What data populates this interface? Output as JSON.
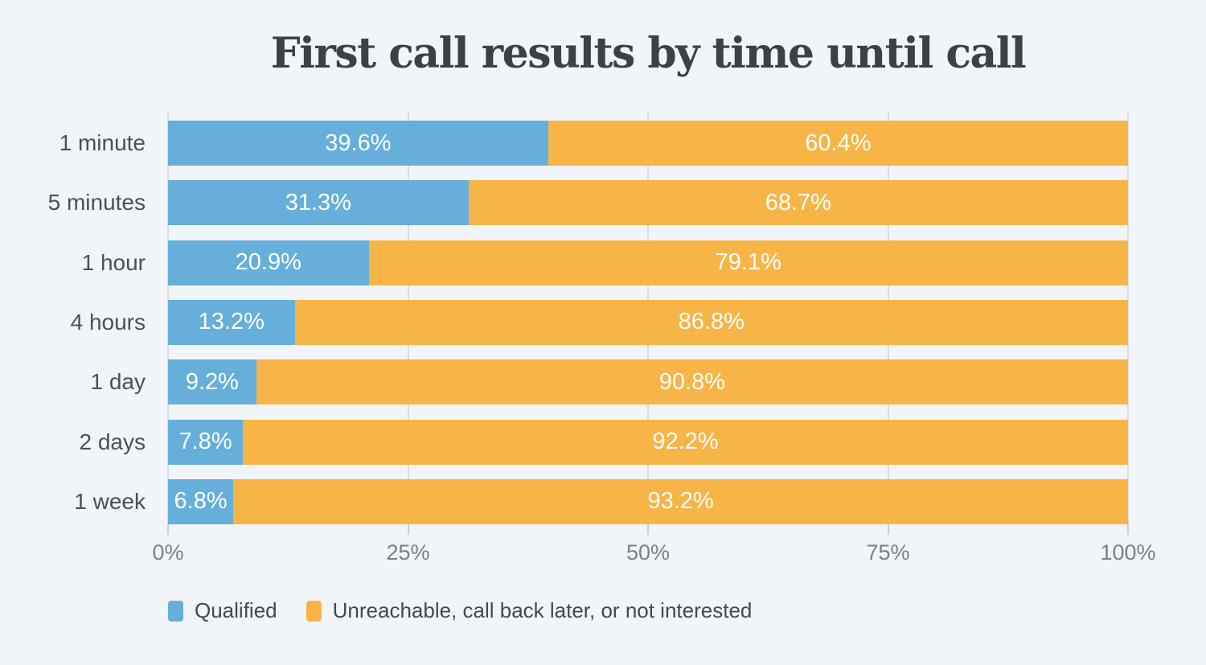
{
  "chart_data": {
    "type": "bar",
    "orientation": "horizontal",
    "stacked": true,
    "title": "First call results by time until call",
    "categories": [
      "1 minute",
      "5 minutes",
      "1 hour",
      "4 hours",
      "1 day",
      "2 days",
      "1 week"
    ],
    "series": [
      {
        "name": "Qualified",
        "color_key": "qualified",
        "values": [
          39.6,
          31.3,
          20.9,
          13.2,
          9.2,
          7.8,
          6.8
        ],
        "labels": [
          "39.6%",
          "31.3%",
          "20.9%",
          "13.2%",
          "9.2%",
          "7.8%",
          "6.8%"
        ]
      },
      {
        "name": "Unreachable, call back later, or not interested",
        "color_key": "unreachable",
        "values": [
          60.4,
          68.7,
          79.1,
          86.8,
          90.8,
          92.2,
          93.2
        ],
        "labels": [
          "60.4%",
          "68.7%",
          "79.1%",
          "86.8%",
          "90.8%",
          "92.2%",
          "93.2%"
        ]
      }
    ],
    "x_axis": {
      "range": [
        0,
        100
      ],
      "ticks": [
        {
          "value": 0,
          "label": "0%"
        },
        {
          "value": 25,
          "label": "25%"
        },
        {
          "value": 50,
          "label": "50%"
        },
        {
          "value": 75,
          "label": "75%"
        },
        {
          "value": 100,
          "label": "100%"
        }
      ]
    },
    "grid": true,
    "legend_position": "bottom-left"
  },
  "colors": {
    "background": "#F1F4F8",
    "qualified": "#66AFDB",
    "unreachable": "#F7B548",
    "title": "#3C4146",
    "category_label": "#4D5156",
    "axis_label": "#7B8085",
    "gridline": "#D9DDE1",
    "tick": "#C9CED3",
    "value_label": "#FFFFFF",
    "legend_label": "#45494E"
  }
}
